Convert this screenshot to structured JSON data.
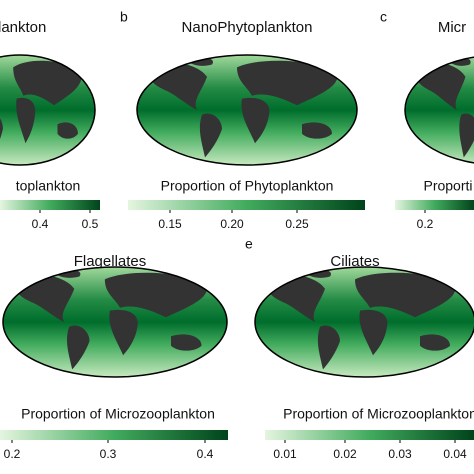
{
  "panels": [
    {
      "title": "plankton",
      "colorbar": {
        "label": "toplankton",
        "ticks": [
          "0.4",
          "0.5"
        ]
      }
    },
    {
      "letter": "b",
      "title": "NanoPhytoplankton",
      "colorbar": {
        "label": "Proportion of Phytoplankton",
        "ticks": [
          "0.15",
          "0.20",
          "0.25"
        ]
      }
    },
    {
      "letter": "c",
      "title": "Micr",
      "colorbar": {
        "label": "Proporti",
        "ticks": [
          "0.2"
        ]
      }
    },
    {
      "title": "Flagellates",
      "colorbar": {
        "label": "Proportion of Microzooplankton",
        "ticks": [
          "0.2",
          "0.3",
          "0.4"
        ]
      }
    },
    {
      "letter": "e",
      "title": "Ciliates",
      "colorbar": {
        "label": "Proportion of Microzooplankton",
        "ticks": [
          "0.01",
          "0.02",
          "0.03",
          "0.04"
        ]
      }
    }
  ]
}
